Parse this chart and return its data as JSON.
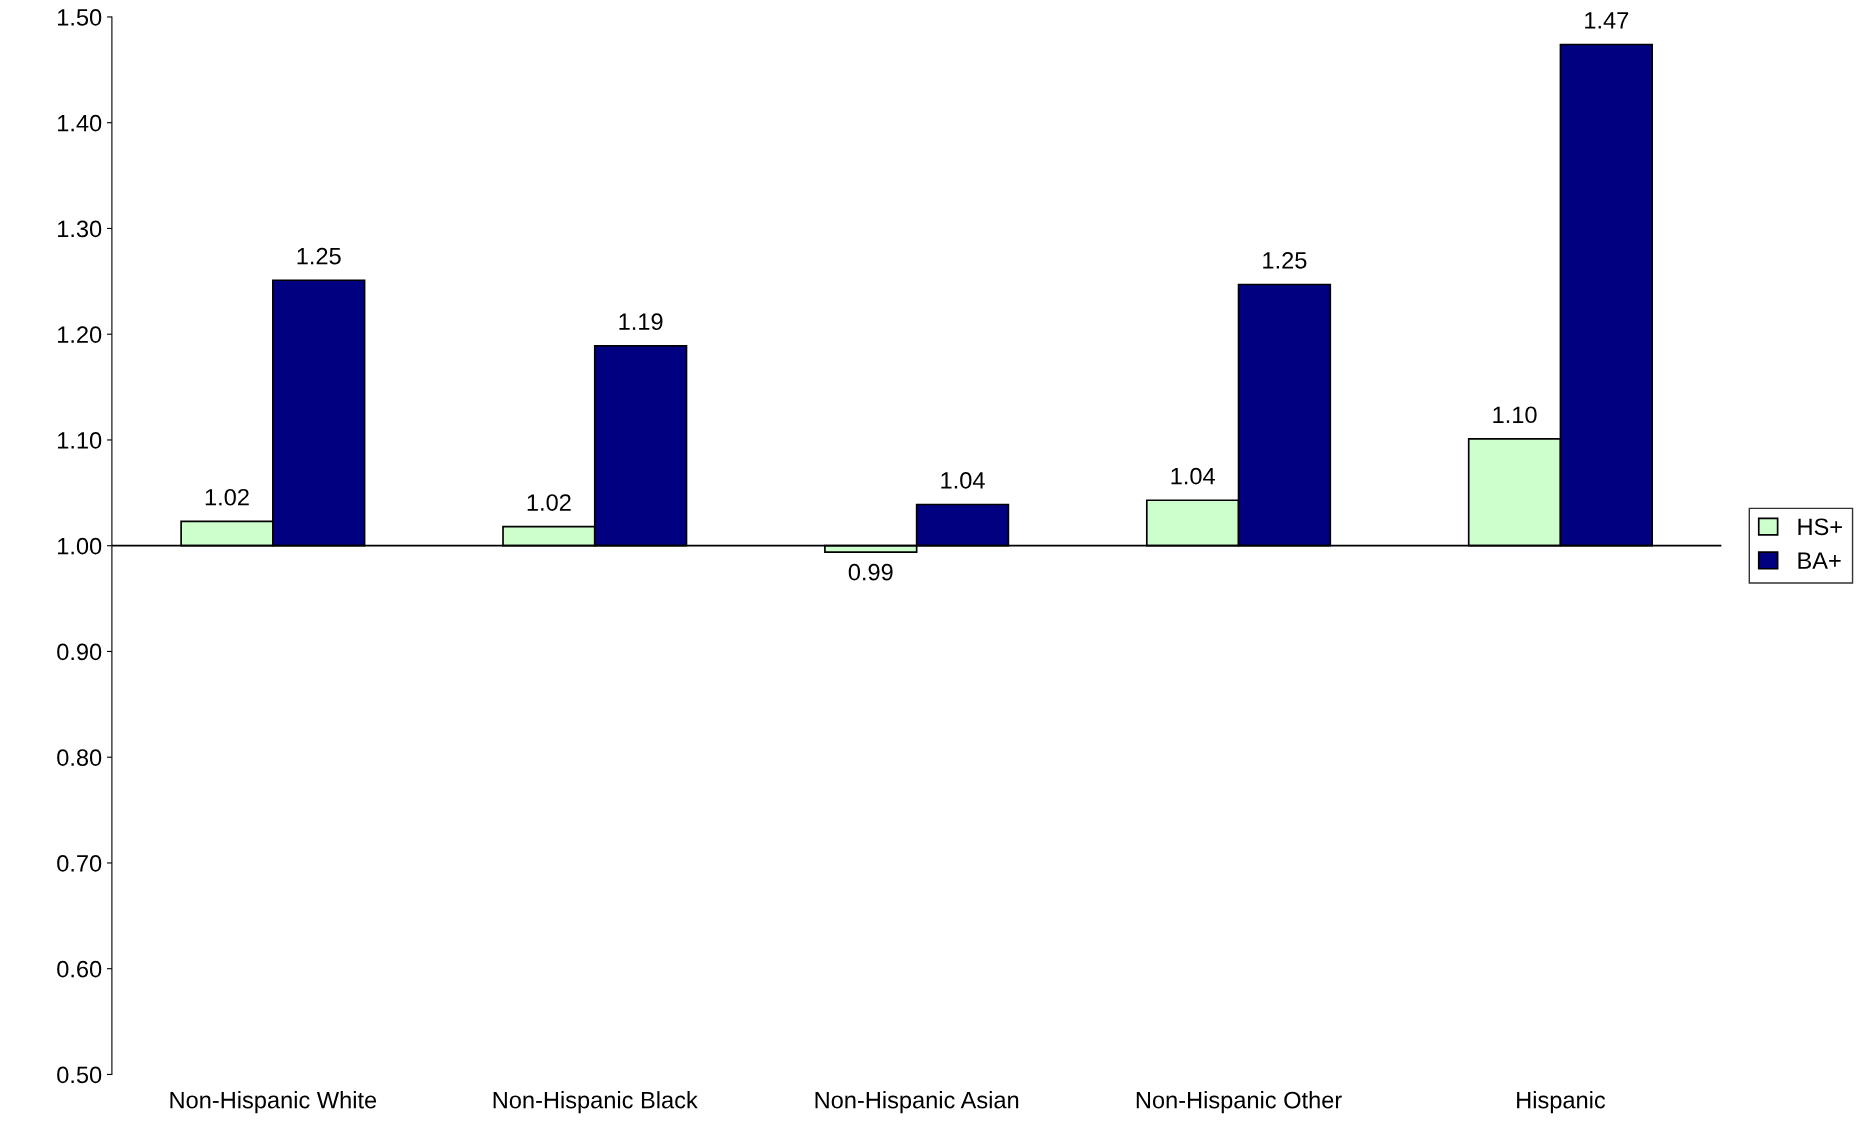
{
  "chart_data": {
    "type": "bar",
    "categories": [
      "Non-Hispanic White",
      "Non-Hispanic Black",
      "Non-Hispanic Asian",
      "Non-Hispanic Other",
      "Hispanic"
    ],
    "series": [
      {
        "name": "HS+",
        "color": "#ccffcc",
        "base": [
          1.0,
          1.0,
          1.0,
          1.0,
          1.0
        ],
        "values": [
          0.023,
          0.018,
          -0.006,
          0.043,
          0.101
        ],
        "value_labels": [
          "1.02",
          "1.02",
          "0.99",
          "1.04",
          "1.10"
        ]
      },
      {
        "name": "BA+",
        "color": "#000080",
        "base": [
          1.0,
          1.0,
          1.0,
          1.0,
          1.0
        ],
        "values": [
          0.251,
          0.189,
          0.039,
          0.247,
          0.474
        ],
        "value_labels": [
          "1.25",
          "1.19",
          "1.04",
          "1.25",
          "1.47"
        ]
      }
    ],
    "ylim": [
      0.5,
      1.5
    ],
    "yticks": [
      {
        "value": 0.5,
        "label": "0.50"
      },
      {
        "value": 0.6,
        "label": "0.60"
      },
      {
        "value": 0.7,
        "label": "0.70"
      },
      {
        "value": 0.8,
        "label": "0.80"
      },
      {
        "value": 0.9,
        "label": "0.90"
      },
      {
        "value": 1.0,
        "label": "1.00"
      },
      {
        "value": 1.1,
        "label": "1.10"
      },
      {
        "value": 1.2,
        "label": "1.20"
      },
      {
        "value": 1.3,
        "label": "1.30"
      },
      {
        "value": 1.4,
        "label": "1.40"
      },
      {
        "value": 1.5,
        "label": "1.50"
      }
    ],
    "ref_lines": [
      {
        "axis": "y",
        "value": 1.0,
        "color": "#000000"
      }
    ],
    "legend": "right",
    "grid": false
  }
}
